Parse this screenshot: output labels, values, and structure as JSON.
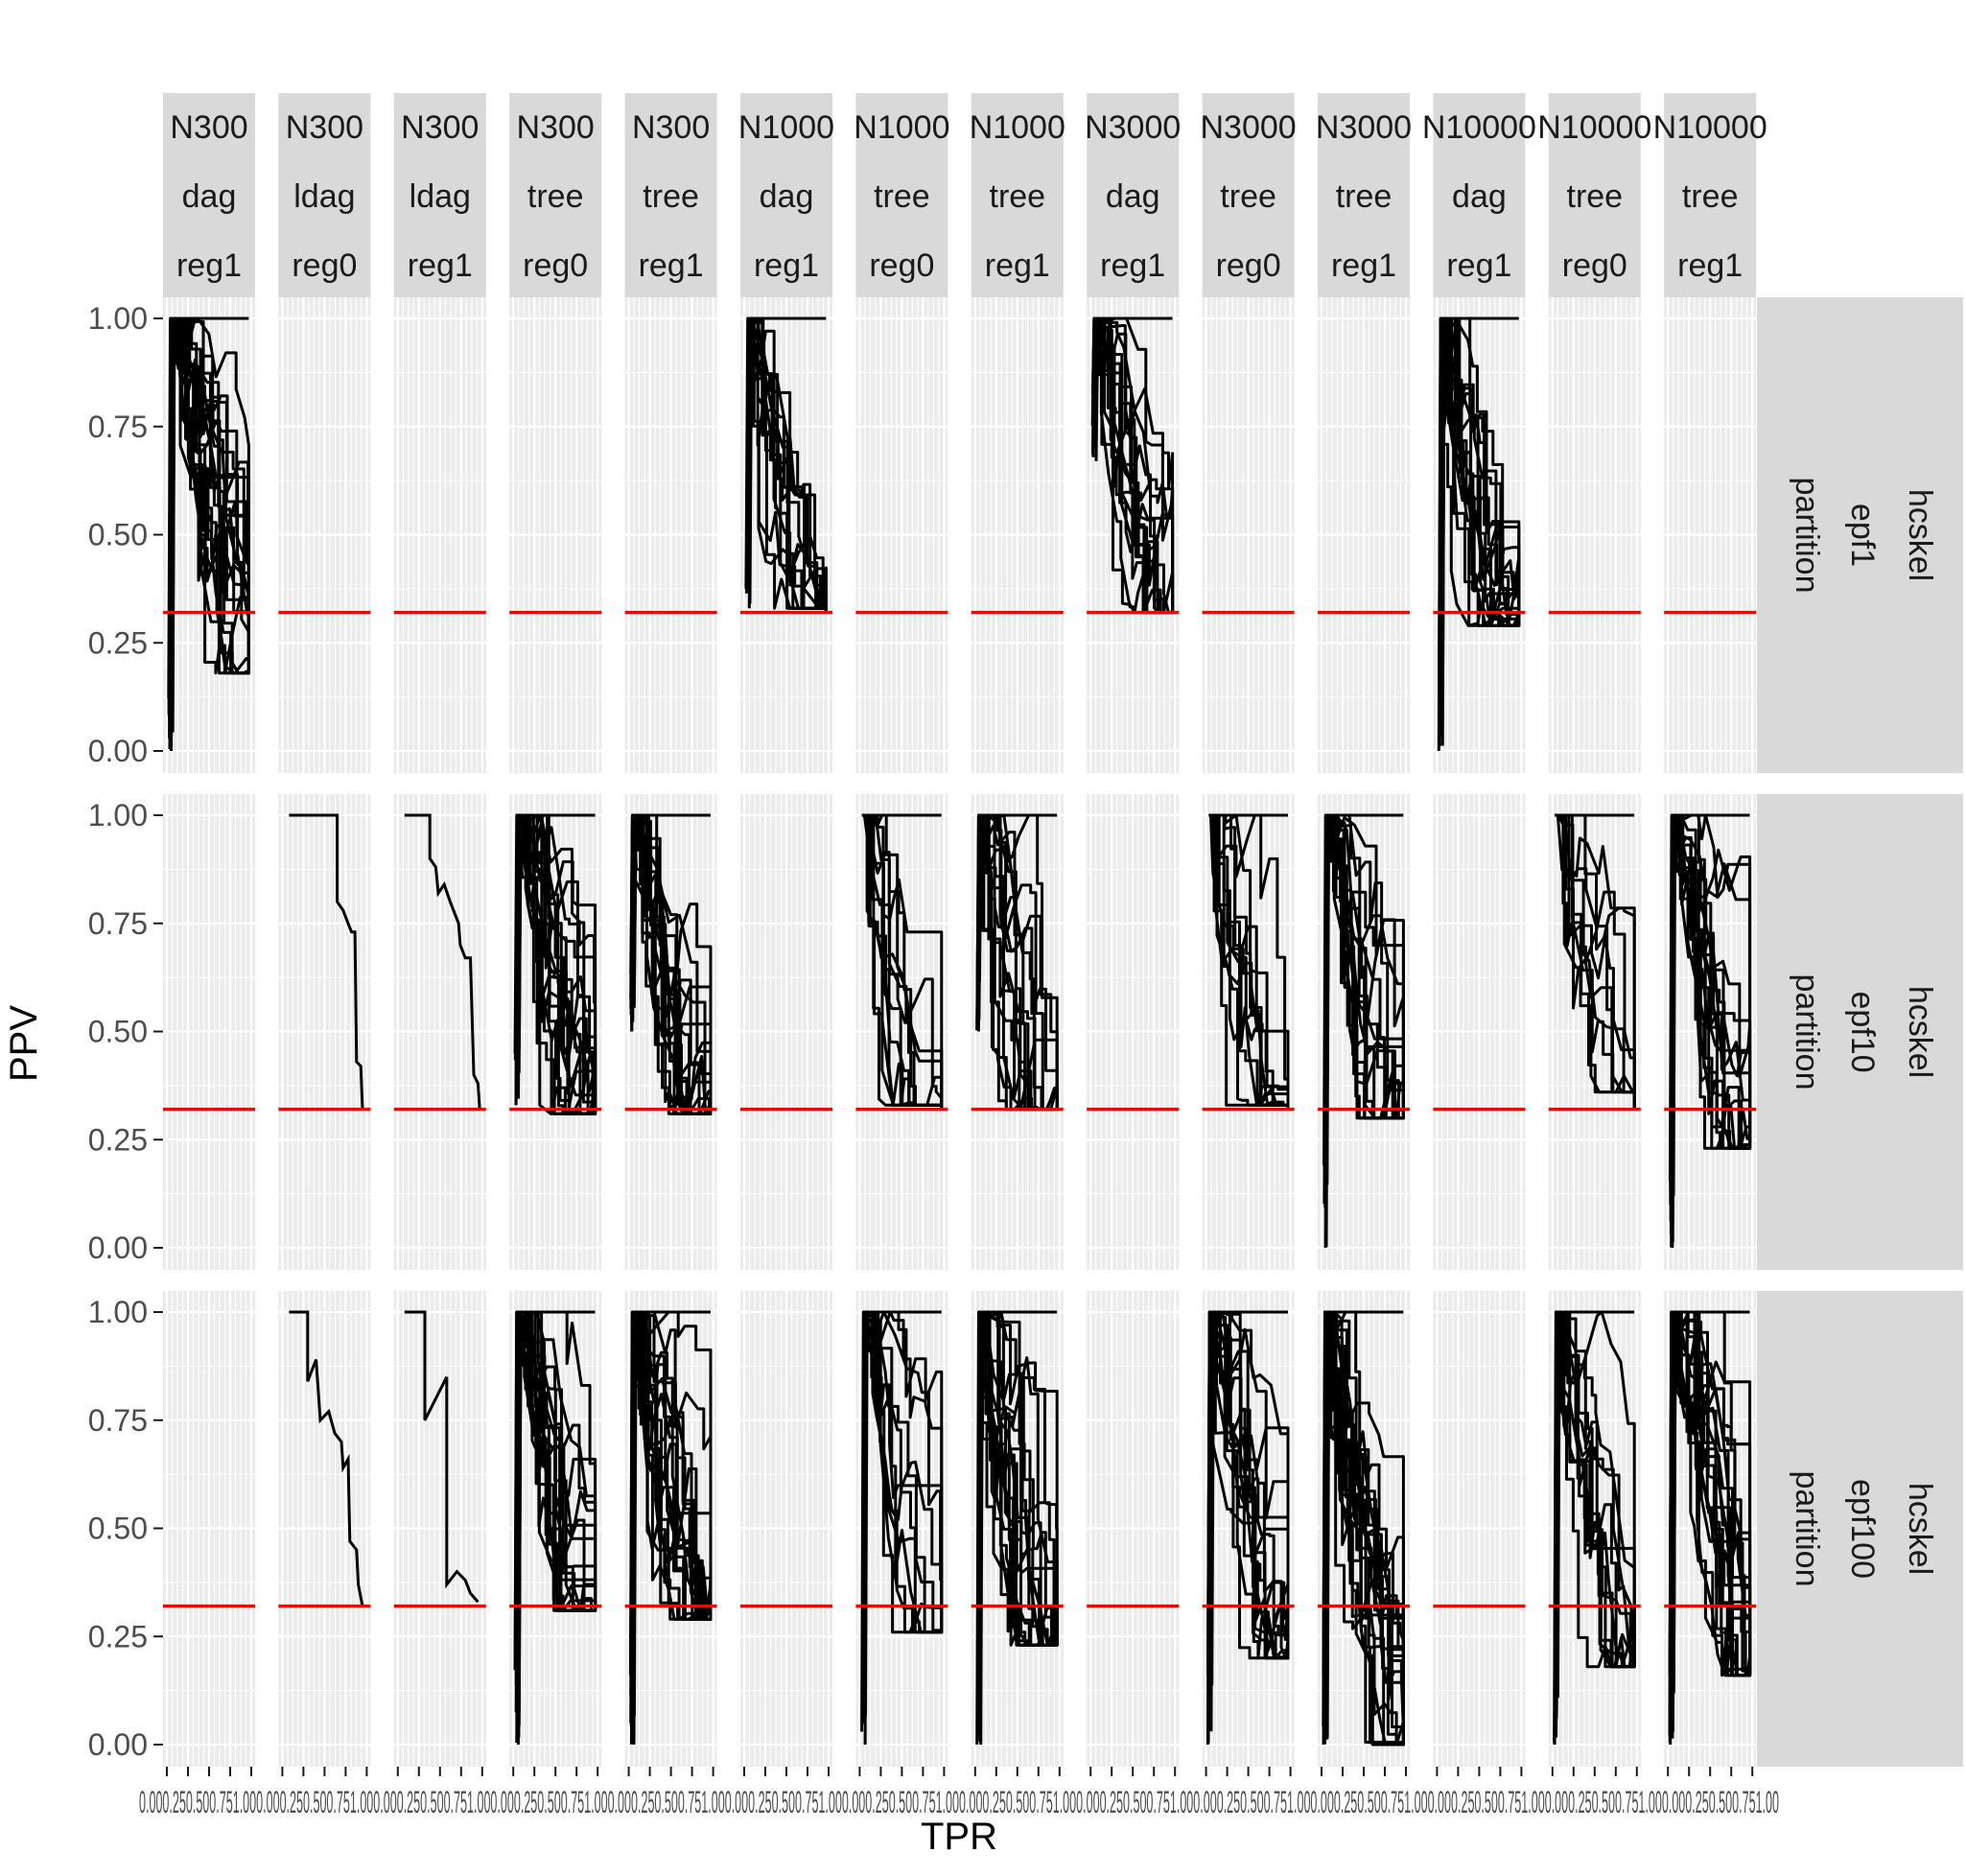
{
  "chart_data": {
    "type": "line",
    "layout": "facet-grid",
    "xlabel": "TPR",
    "ylabel": "PPV",
    "xlim": [
      0,
      1
    ],
    "ylim": [
      0,
      1
    ],
    "x_ticks": [
      "0.00",
      "0.25",
      "0.50",
      "0.75",
      "1.00"
    ],
    "x_tick_labels_rendered": "0.000.250.500.751.00",
    "y_ticks": [
      "0.00",
      "0.25",
      "0.50",
      "0.75",
      "1.00"
    ],
    "grid": true,
    "legend": "none",
    "colors": {
      "panel_bg": "#ebebeb",
      "grid_major": "#ffffff",
      "strip_bg": "#d9d9d9",
      "line": "#000000",
      "reference_line": "#ff0000",
      "text": "#1a1a1a",
      "tick_text": "#4d4d4d"
    },
    "reference_line": {
      "y": 0.32
    },
    "columns": [
      {
        "label": [
          "N300",
          "dag",
          "reg1"
        ]
      },
      {
        "label": [
          "N300",
          "ldag",
          "reg0"
        ]
      },
      {
        "label": [
          "N300",
          "ldag",
          "reg1"
        ]
      },
      {
        "label": [
          "N300",
          "tree",
          "reg0"
        ]
      },
      {
        "label": [
          "N300",
          "tree",
          "reg1"
        ]
      },
      {
        "label": [
          "N1000",
          "dag",
          "reg1"
        ]
      },
      {
        "label": [
          "N1000",
          "tree",
          "reg0"
        ]
      },
      {
        "label": [
          "N1000",
          "tree",
          "reg1"
        ]
      },
      {
        "label": [
          "N3000",
          "dag",
          "reg1"
        ]
      },
      {
        "label": [
          "N3000",
          "tree",
          "reg0"
        ]
      },
      {
        "label": [
          "N3000",
          "tree",
          "reg1"
        ]
      },
      {
        "label": [
          "N10000",
          "dag",
          "reg1"
        ]
      },
      {
        "label": [
          "N10000",
          "tree",
          "reg0"
        ]
      },
      {
        "label": [
          "N10000",
          "tree",
          "reg1"
        ]
      }
    ],
    "rows": [
      {
        "label": [
          "hcskel",
          "epf1",
          "partition"
        ]
      },
      {
        "label": [
          "hcskel",
          "epf10",
          "partition"
        ]
      },
      {
        "label": [
          "hcskel",
          "epf100",
          "partition"
        ]
      }
    ],
    "panels": [
      {
        "row": 0,
        "col": 0,
        "has_data": true,
        "start_ppv": 0.0,
        "min_ppv": 0.18,
        "max_ppv": 1.0,
        "n_curves": 22
      },
      {
        "row": 0,
        "col": 1,
        "has_data": false
      },
      {
        "row": 0,
        "col": 2,
        "has_data": false
      },
      {
        "row": 0,
        "col": 3,
        "has_data": false
      },
      {
        "row": 0,
        "col": 4,
        "has_data": false
      },
      {
        "row": 0,
        "col": 5,
        "has_data": true,
        "start_ppv": 0.33,
        "min_ppv": 0.33,
        "max_ppv": 1.0,
        "n_curves": 14
      },
      {
        "row": 0,
        "col": 6,
        "has_data": false
      },
      {
        "row": 0,
        "col": 7,
        "has_data": false
      },
      {
        "row": 0,
        "col": 8,
        "has_data": true,
        "start_ppv": 0.67,
        "min_ppv": 0.32,
        "max_ppv": 1.0,
        "n_curves": 16
      },
      {
        "row": 0,
        "col": 9,
        "has_data": false
      },
      {
        "row": 0,
        "col": 10,
        "has_data": false
      },
      {
        "row": 0,
        "col": 11,
        "has_data": true,
        "start_ppv": 0.0,
        "min_ppv": 0.29,
        "max_ppv": 1.0,
        "n_curves": 18
      },
      {
        "row": 0,
        "col": 12,
        "has_data": false
      },
      {
        "row": 0,
        "col": 13,
        "has_data": false
      },
      {
        "row": 1,
        "col": 0,
        "has_data": false
      },
      {
        "row": 1,
        "col": 1,
        "has_data": true,
        "single": [
          [
            0.08,
            1.0
          ],
          [
            0.65,
            1.0
          ],
          [
            0.65,
            0.8
          ],
          [
            0.72,
            0.78
          ],
          [
            0.78,
            0.75
          ],
          [
            0.82,
            0.73
          ],
          [
            0.86,
            0.73
          ],
          [
            0.88,
            0.43
          ],
          [
            0.93,
            0.42
          ],
          [
            0.95,
            0.32
          ]
        ]
      },
      {
        "row": 1,
        "col": 2,
        "has_data": true,
        "single": [
          [
            0.08,
            1.0
          ],
          [
            0.38,
            1.0
          ],
          [
            0.38,
            0.9
          ],
          [
            0.45,
            0.88
          ],
          [
            0.48,
            0.82
          ],
          [
            0.55,
            0.84
          ],
          [
            0.62,
            0.8
          ],
          [
            0.72,
            0.75
          ],
          [
            0.74,
            0.7
          ],
          [
            0.8,
            0.67
          ],
          [
            0.86,
            0.67
          ],
          [
            0.9,
            0.4
          ],
          [
            0.95,
            0.38
          ],
          [
            0.97,
            0.32
          ]
        ]
      },
      {
        "row": 1,
        "col": 3,
        "has_data": true,
        "start_ppv": 0.33,
        "min_ppv": 0.31,
        "max_ppv": 1.0,
        "n_curves": 20
      },
      {
        "row": 1,
        "col": 4,
        "has_data": true,
        "start_ppv": 0.5,
        "min_ppv": 0.31,
        "max_ppv": 1.0,
        "n_curves": 20
      },
      {
        "row": 1,
        "col": 5,
        "has_data": false
      },
      {
        "row": 1,
        "col": 6,
        "has_data": true,
        "start_ppv": 1.0,
        "min_ppv": 0.33,
        "max_ppv": 1.0,
        "n_curves": 12
      },
      {
        "row": 1,
        "col": 7,
        "has_data": true,
        "start_ppv": 0.5,
        "min_ppv": 0.32,
        "max_ppv": 1.0,
        "n_curves": 16
      },
      {
        "row": 1,
        "col": 8,
        "has_data": false
      },
      {
        "row": 1,
        "col": 9,
        "has_data": true,
        "start_ppv": 1.0,
        "min_ppv": 0.33,
        "max_ppv": 1.0,
        "n_curves": 12
      },
      {
        "row": 1,
        "col": 10,
        "has_data": true,
        "start_ppv": 0.0,
        "min_ppv": 0.3,
        "max_ppv": 1.0,
        "n_curves": 18
      },
      {
        "row": 1,
        "col": 11,
        "has_data": false
      },
      {
        "row": 1,
        "col": 12,
        "has_data": true,
        "start_ppv": 1.0,
        "min_ppv": 0.36,
        "max_ppv": 1.0,
        "n_curves": 10
      },
      {
        "row": 1,
        "col": 13,
        "has_data": true,
        "start_ppv": 0.0,
        "min_ppv": 0.23,
        "max_ppv": 1.0,
        "n_curves": 18
      },
      {
        "row": 2,
        "col": 0,
        "has_data": false
      },
      {
        "row": 2,
        "col": 1,
        "has_data": true,
        "single": [
          [
            0.08,
            1.0
          ],
          [
            0.3,
            1.0
          ],
          [
            0.3,
            0.84
          ],
          [
            0.4,
            0.89
          ],
          [
            0.45,
            0.75
          ],
          [
            0.55,
            0.77
          ],
          [
            0.62,
            0.72
          ],
          [
            0.7,
            0.7
          ],
          [
            0.72,
            0.64
          ],
          [
            0.78,
            0.66
          ],
          [
            0.8,
            0.47
          ],
          [
            0.88,
            0.45
          ],
          [
            0.9,
            0.37
          ],
          [
            0.95,
            0.32
          ]
        ]
      },
      {
        "row": 2,
        "col": 2,
        "has_data": true,
        "single": [
          [
            0.08,
            1.0
          ],
          [
            0.32,
            1.0
          ],
          [
            0.32,
            0.75
          ],
          [
            0.45,
            0.8
          ],
          [
            0.58,
            0.85
          ],
          [
            0.58,
            0.37
          ],
          [
            0.7,
            0.4
          ],
          [
            0.8,
            0.38
          ],
          [
            0.86,
            0.35
          ],
          [
            0.95,
            0.33
          ]
        ]
      },
      {
        "row": 2,
        "col": 3,
        "has_data": true,
        "start_ppv": 0.0,
        "min_ppv": 0.31,
        "max_ppv": 1.0,
        "n_curves": 20
      },
      {
        "row": 2,
        "col": 4,
        "has_data": true,
        "start_ppv": 0.0,
        "min_ppv": 0.29,
        "max_ppv": 1.0,
        "n_curves": 20
      },
      {
        "row": 2,
        "col": 5,
        "has_data": false
      },
      {
        "row": 2,
        "col": 6,
        "has_data": true,
        "start_ppv": 0.0,
        "min_ppv": 0.26,
        "max_ppv": 1.0,
        "n_curves": 12
      },
      {
        "row": 2,
        "col": 7,
        "has_data": true,
        "start_ppv": 0.0,
        "min_ppv": 0.23,
        "max_ppv": 1.0,
        "n_curves": 20
      },
      {
        "row": 2,
        "col": 8,
        "has_data": false
      },
      {
        "row": 2,
        "col": 9,
        "has_data": true,
        "start_ppv": 0.0,
        "min_ppv": 0.2,
        "max_ppv": 1.0,
        "n_curves": 16
      },
      {
        "row": 2,
        "col": 10,
        "has_data": true,
        "start_ppv": 0.0,
        "min_ppv": 0.0,
        "max_ppv": 1.0,
        "n_curves": 22
      },
      {
        "row": 2,
        "col": 11,
        "has_data": false
      },
      {
        "row": 2,
        "col": 12,
        "has_data": true,
        "start_ppv": 0.0,
        "min_ppv": 0.18,
        "max_ppv": 1.0,
        "n_curves": 14
      },
      {
        "row": 2,
        "col": 13,
        "has_data": true,
        "start_ppv": 0.0,
        "min_ppv": 0.16,
        "max_ppv": 1.0,
        "n_curves": 22
      }
    ]
  }
}
